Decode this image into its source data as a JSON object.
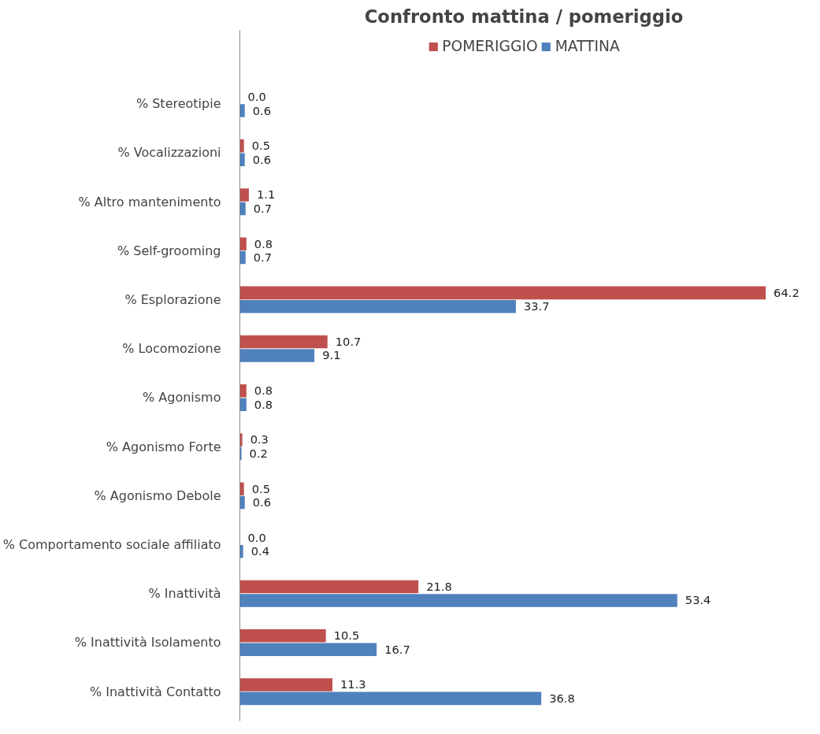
{
  "chart_data": {
    "type": "bar",
    "orientation": "horizontal",
    "title": "Confronto mattina / pomeriggio",
    "categories": [
      "% Stereotipie",
      "% Vocalizzazioni",
      "% Altro mantenimento",
      "% Self-grooming",
      "% Esplorazione",
      "% Locomozione",
      "% Agonismo",
      "% Agonismo Forte",
      "% Agonismo Debole",
      "% Comportamento sociale affiliato",
      "% Inattività",
      "% Inattività Isolamento",
      "% Inattività Contatto"
    ],
    "series": [
      {
        "name": "POMERIGGIO",
        "color": "#c0504d",
        "values": [
          0.0,
          0.5,
          1.1,
          0.8,
          64.2,
          10.7,
          0.8,
          0.3,
          0.5,
          0.0,
          21.8,
          10.5,
          11.3
        ],
        "value_labels": [
          "0.0",
          "0.5",
          "1.1",
          "0.8",
          "64.2",
          "10.7",
          "0.8",
          "0.3",
          "0.5",
          "0.0",
          "21.8",
          "10.5",
          "11.3"
        ]
      },
      {
        "name": "MATTINA",
        "color": "#4f81bd",
        "values": [
          0.6,
          0.6,
          0.7,
          0.7,
          33.7,
          9.1,
          0.8,
          0.2,
          0.6,
          0.4,
          53.4,
          16.7,
          36.8
        ],
        "value_labels": [
          "0.6",
          "0.6",
          "0.7",
          "0.7",
          "33.7",
          "9.1",
          "0.8",
          "0.2",
          "0.6",
          "0.4",
          "53.4",
          "16.7",
          "36.8"
        ]
      }
    ],
    "legend": "top",
    "grid": false
  }
}
